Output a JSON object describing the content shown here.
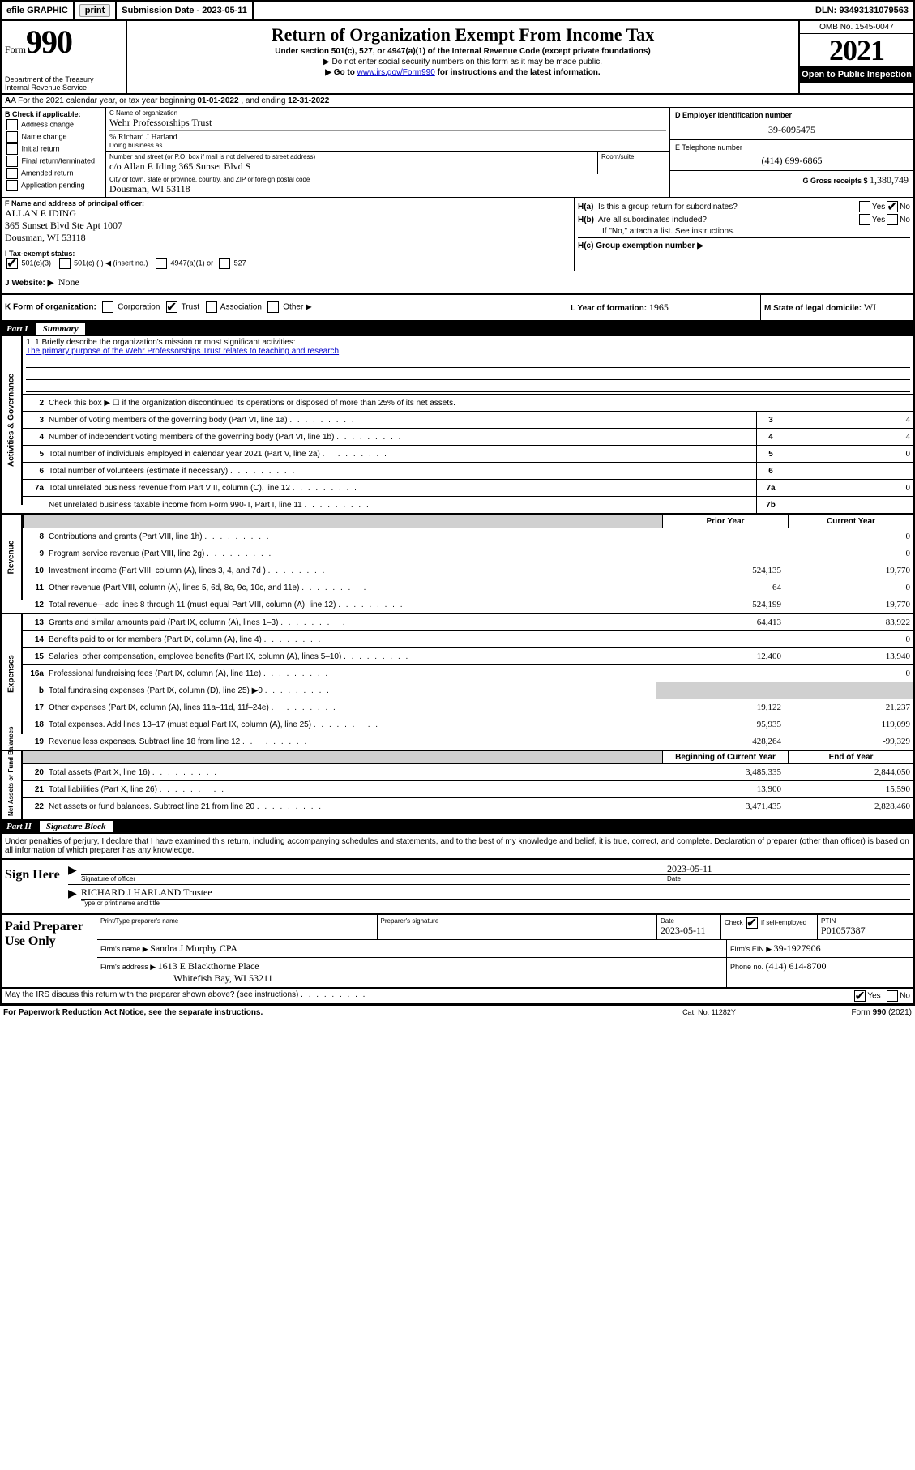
{
  "topbar": {
    "efile": "efile GRAPHIC",
    "print": "print",
    "subdate_lbl": "Submission Date - 2023-05-11",
    "dln": "DLN: 93493131079563"
  },
  "header": {
    "form_word": "Form",
    "form_num": "990",
    "dept": "Department of the Treasury\nInternal Revenue Service",
    "title": "Return of Organization Exempt From Income Tax",
    "sub1": "Under section 501(c), 527, or 4947(a)(1) of the Internal Revenue Code (except private foundations)",
    "sub2": "▶ Do not enter social security numbers on this form as it may be made public.",
    "sub3_pre": "▶ Go to ",
    "sub3_link": "www.irs.gov/Form990",
    "sub3_post": " for instructions and the latest information.",
    "omb": "OMB No. 1545-0047",
    "year": "2021",
    "inspect": "Open to Public Inspection"
  },
  "rowA": {
    "text_pre": "A For the 2021 calendar year, or tax year beginning ",
    "begin": "01-01-2022",
    "mid": " , and ending ",
    "end": "12-31-2022"
  },
  "colB": {
    "hdr": "B Check if applicable:",
    "opts": [
      "Address change",
      "Name change",
      "Initial return",
      "Final return/terminated",
      "Amended return",
      "Application pending"
    ]
  },
  "colC": {
    "name_lbl": "C Name of organization",
    "name_val": "Wehr Professorships Trust",
    "care_lbl": "% Richard J Harland",
    "dba_lbl": "Doing business as",
    "addr_lbl": "Number and street (or P.O. box if mail is not delivered to street address)",
    "addr_val": "c/o Allan E Iding 365 Sunset Blvd S",
    "room_lbl": "Room/suite",
    "city_lbl": "City or town, state or province, country, and ZIP or foreign postal code",
    "city_val": "Dousman, WI  53118"
  },
  "colDE": {
    "d_lbl": "D Employer identification number",
    "d_val": "39-6095475",
    "e_lbl": "E Telephone number",
    "e_val": "(414) 699-6865",
    "g_lbl": "G Gross receipts $",
    "g_val": "1,380,749"
  },
  "rowF": {
    "f_lbl": "F  Name and address of principal officer:",
    "f_name": "ALLAN E IDING",
    "f_addr1": "365 Sunset Blvd Ste Apt 1007",
    "f_addr2": "Dousman, WI  53118"
  },
  "rowH": {
    "ha_lbl": "H(a)  Is this a group return for subordinates?",
    "hb_lbl": "H(b)  Are all subordinates included?",
    "hb_note": "If \"No,\" attach a list. See instructions.",
    "hc_lbl": "H(c)  Group exemption number ▶",
    "yes": "Yes",
    "no": "No"
  },
  "rowI": {
    "lbl": "I  Tax-exempt status:",
    "o1": "501(c)(3)",
    "o2": "501(c) (  ) ◀ (insert no.)",
    "o3": "4947(a)(1) or",
    "o4": "527"
  },
  "rowJ": {
    "lbl": "J  Website: ▶",
    "val": "None"
  },
  "rowK": {
    "lbl": "K Form of organization:",
    "opts": [
      "Corporation",
      "Trust",
      "Association",
      "Other ▶"
    ],
    "L_lbl": "L Year of formation:",
    "L_val": "1965",
    "M_lbl": "M State of legal domicile:",
    "M_val": "WI"
  },
  "part1": {
    "num": "Part I",
    "title": "Summary"
  },
  "summary": {
    "l1_lbl": "1  Briefly describe the organization's mission or most significant activities:",
    "l1_val": "The primary purpose of the Wehr Professorships Trust relates to teaching and research",
    "l2": "Check this box ▶ ☐  if the organization discontinued its operations or disposed of more than 25% of its net assets.",
    "rows_ag": [
      {
        "n": "3",
        "t": "Number of voting members of the governing body (Part VI, line 1a)",
        "b": "3",
        "v": "4"
      },
      {
        "n": "4",
        "t": "Number of independent voting members of the governing body (Part VI, line 1b)",
        "b": "4",
        "v": "4"
      },
      {
        "n": "5",
        "t": "Total number of individuals employed in calendar year 2021 (Part V, line 2a)",
        "b": "5",
        "v": "0"
      },
      {
        "n": "6",
        "t": "Total number of volunteers (estimate if necessary)",
        "b": "6",
        "v": ""
      },
      {
        "n": "7a",
        "t": "Total unrelated business revenue from Part VIII, column (C), line 12",
        "b": "7a",
        "v": "0"
      },
      {
        "n": "",
        "t": "Net unrelated business taxable income from Form 990-T, Part I, line 11",
        "b": "7b",
        "v": ""
      }
    ],
    "py_lbl": "Prior Year",
    "cy_lbl": "Current Year",
    "rows_rev": [
      {
        "n": "8",
        "t": "Contributions and grants (Part VIII, line 1h)",
        "py": "",
        "cy": "0"
      },
      {
        "n": "9",
        "t": "Program service revenue (Part VIII, line 2g)",
        "py": "",
        "cy": "0"
      },
      {
        "n": "10",
        "t": "Investment income (Part VIII, column (A), lines 3, 4, and 7d )",
        "py": "524,135",
        "cy": "19,770"
      },
      {
        "n": "11",
        "t": "Other revenue (Part VIII, column (A), lines 5, 6d, 8c, 9c, 10c, and 11e)",
        "py": "64",
        "cy": "0"
      },
      {
        "n": "12",
        "t": "Total revenue—add lines 8 through 11 (must equal Part VIII, column (A), line 12)",
        "py": "524,199",
        "cy": "19,770"
      }
    ],
    "rows_exp": [
      {
        "n": "13",
        "t": "Grants and similar amounts paid (Part IX, column (A), lines 1–3)",
        "py": "64,413",
        "cy": "83,922"
      },
      {
        "n": "14",
        "t": "Benefits paid to or for members (Part IX, column (A), line 4)",
        "py": "",
        "cy": "0"
      },
      {
        "n": "15",
        "t": "Salaries, other compensation, employee benefits (Part IX, column (A), lines 5–10)",
        "py": "12,400",
        "cy": "13,940"
      },
      {
        "n": "16a",
        "t": "Professional fundraising fees (Part IX, column (A), line 11e)",
        "py": "",
        "cy": "0"
      },
      {
        "n": "b",
        "t": "Total fundraising expenses (Part IX, column (D), line 25) ▶0",
        "py": "shade",
        "cy": "shade"
      },
      {
        "n": "17",
        "t": "Other expenses (Part IX, column (A), lines 11a–11d, 11f–24e)",
        "py": "19,122",
        "cy": "21,237"
      },
      {
        "n": "18",
        "t": "Total expenses. Add lines 13–17 (must equal Part IX, column (A), line 25)",
        "py": "95,935",
        "cy": "119,099"
      },
      {
        "n": "19",
        "t": "Revenue less expenses. Subtract line 18 from line 12",
        "py": "428,264",
        "cy": "-99,329"
      }
    ],
    "boy_lbl": "Beginning of Current Year",
    "eoy_lbl": "End of Year",
    "rows_na": [
      {
        "n": "20",
        "t": "Total assets (Part X, line 16)",
        "py": "3,485,335",
        "cy": "2,844,050"
      },
      {
        "n": "21",
        "t": "Total liabilities (Part X, line 26)",
        "py": "13,900",
        "cy": "15,590"
      },
      {
        "n": "22",
        "t": "Net assets or fund balances. Subtract line 21 from line 20",
        "py": "3,471,435",
        "cy": "2,828,460"
      }
    ],
    "vtab_ag": "Activities & Governance",
    "vtab_rev": "Revenue",
    "vtab_exp": "Expenses",
    "vtab_na": "Net Assets or Fund Balances"
  },
  "part2": {
    "num": "Part II",
    "title": "Signature Block",
    "decl": "Under penalties of perjury, I declare that I have examined this return, including accompanying schedules and statements, and to the best of my knowledge and belief, it is true, correct, and complete. Declaration of preparer (other than officer) is based on all information of which preparer has any knowledge."
  },
  "sign": {
    "here": "Sign Here",
    "sig_lbl": "Signature of officer",
    "date_lbl": "Date",
    "date_val": "2023-05-11",
    "name_val": "RICHARD J HARLAND Trustee",
    "name_lbl": "Type or print name and title"
  },
  "paid": {
    "title": "Paid Preparer Use Only",
    "r1": {
      "c1_lbl": "Print/Type preparer's name",
      "c2_lbl": "Preparer's signature",
      "c3_lbl": "Date",
      "c3_val": "2023-05-11",
      "c4_lbl": "Check ☑ if self-employed",
      "c5_lbl": "PTIN",
      "c5_val": "P01057387"
    },
    "r2": {
      "lbl": "Firm's name    ▶",
      "val": "Sandra J Murphy CPA",
      "ein_lbl": "Firm's EIN ▶",
      "ein_val": "39-1927906"
    },
    "r3": {
      "lbl": "Firm's address ▶",
      "val1": "1613 E Blackthorne Place",
      "val2": "Whitefish Bay, WI  53211",
      "ph_lbl": "Phone no.",
      "ph_val": "(414) 614-8700"
    }
  },
  "footer": {
    "discuss": "May the IRS discuss this return with the preparer shown above? (see instructions)",
    "yes": "Yes",
    "no": "No",
    "pra": "For Paperwork Reduction Act Notice, see the separate instructions.",
    "cat": "Cat. No. 11282Y",
    "form": "Form 990 (2021)"
  }
}
